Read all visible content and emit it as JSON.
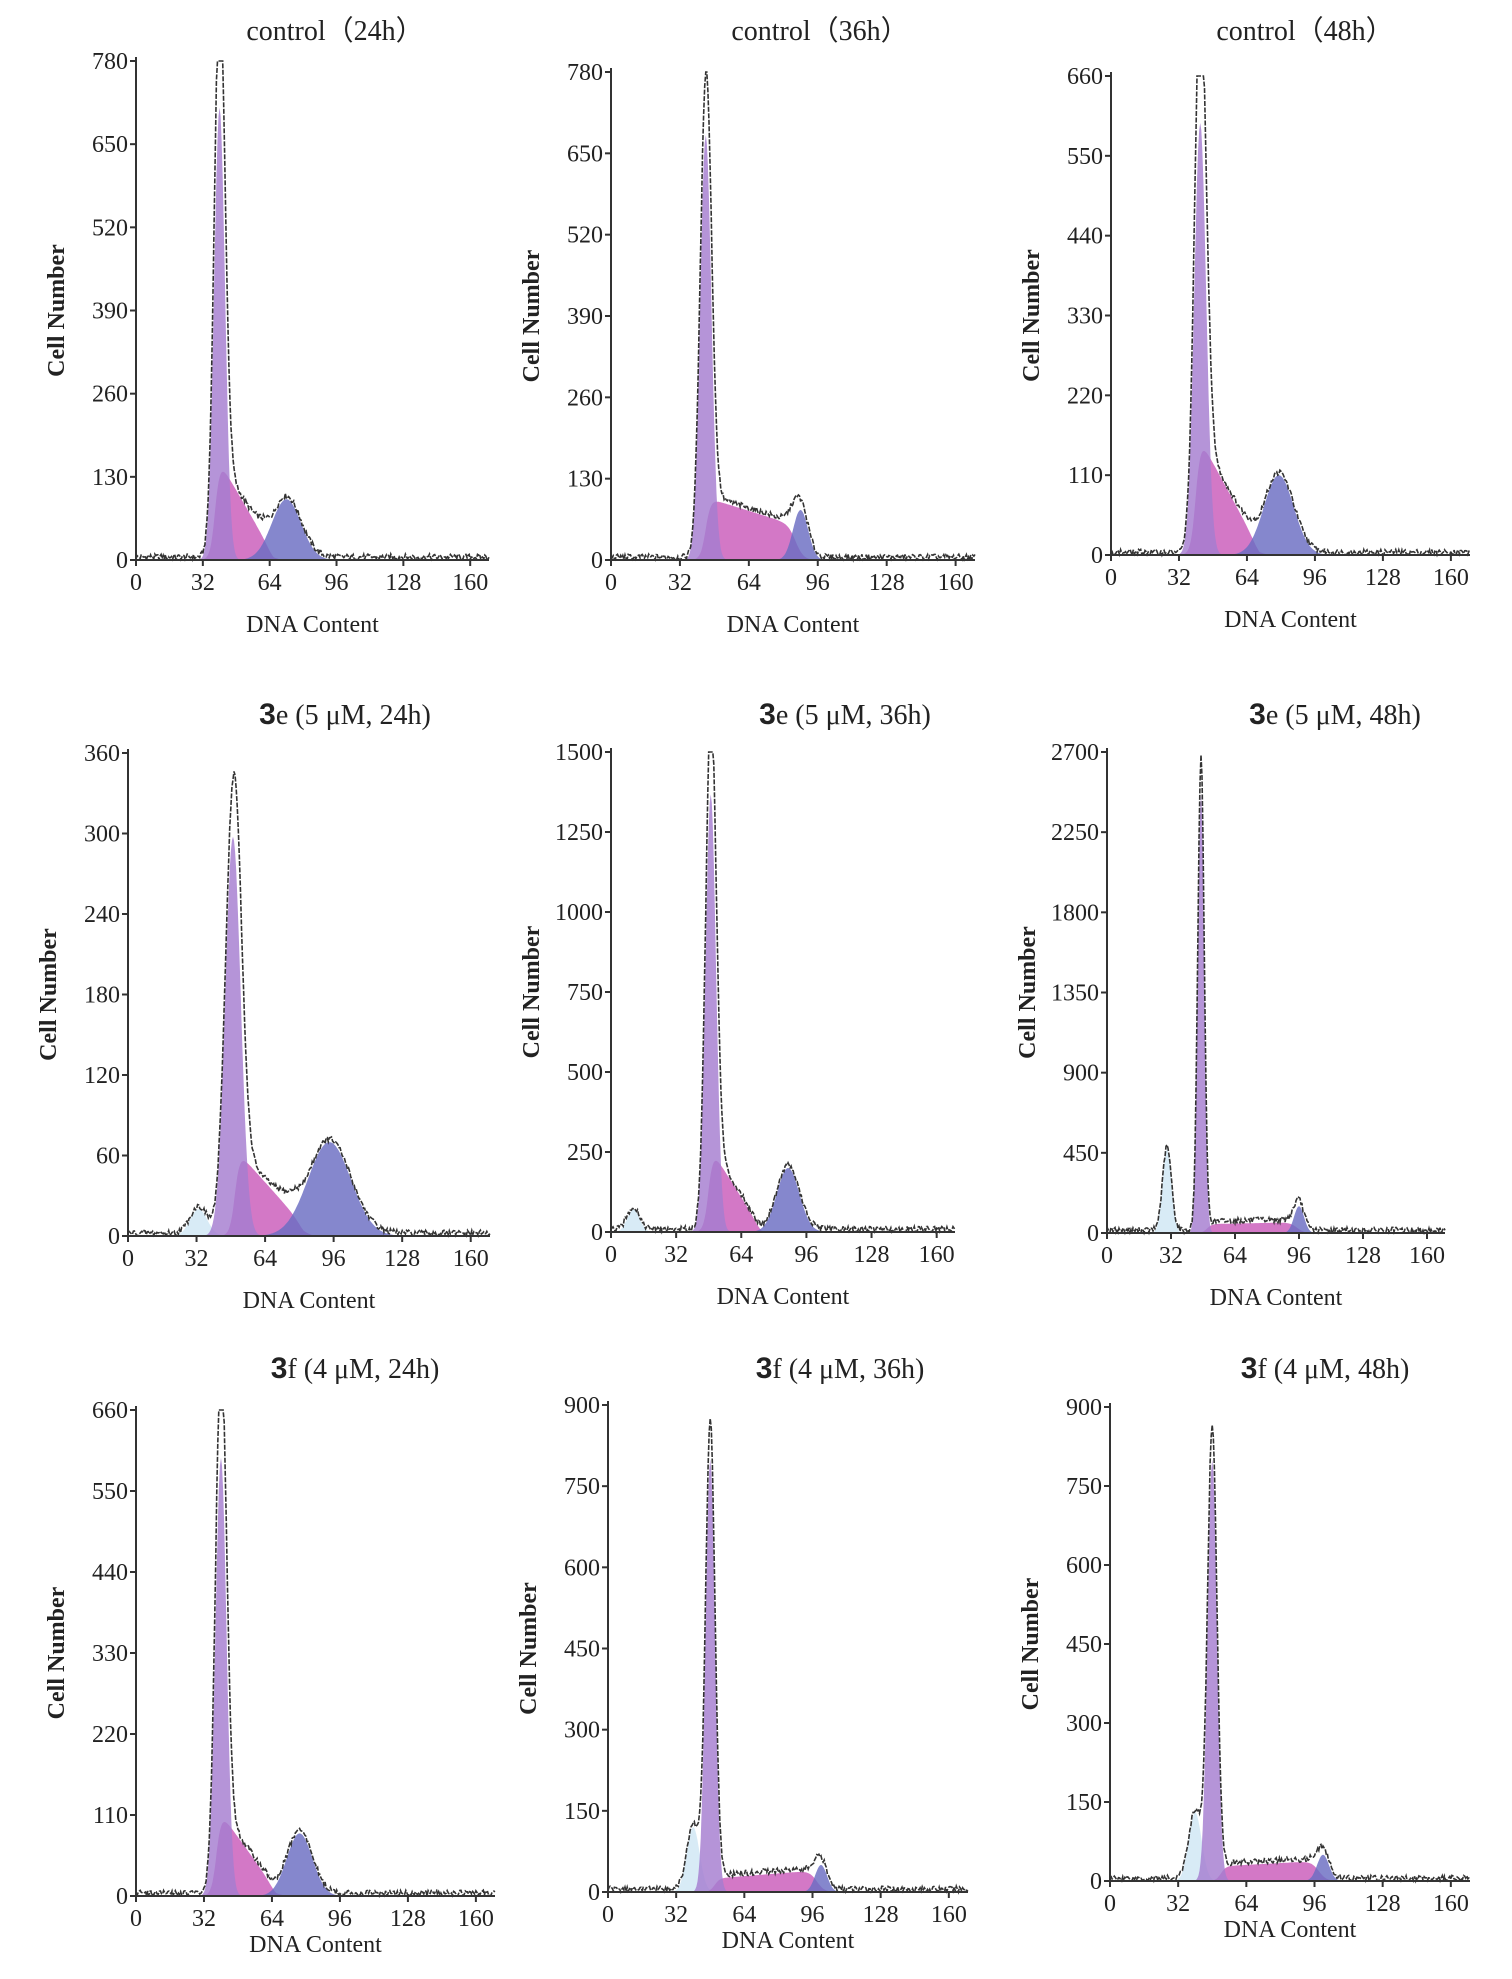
{
  "chart_data": [
    {
      "type": "area",
      "title_bold": "",
      "title": "control（24h）",
      "xlabel": "DNA Content",
      "ylabel": "Cell Number",
      "xlim": [
        0,
        169
      ],
      "ylim": [
        0,
        780
      ],
      "xticks": [
        0,
        32,
        64,
        96,
        128,
        160
      ],
      "yticks": [
        0,
        130,
        260,
        390,
        520,
        650,
        780
      ],
      "components": {
        "sub_g1": null,
        "g1": {
          "x": 40,
          "height": 760,
          "sigma": 2.6
        },
        "s": {
          "start": 38,
          "end": 66,
          "h_start": 165,
          "h_end": 8
        },
        "g2": {
          "x": 72,
          "height": 95,
          "sigma": 7
        }
      }
    },
    {
      "type": "area",
      "title_bold": "",
      "title": "control（36h）",
      "xlabel": "DNA Content",
      "ylabel": "Cell Number",
      "xlim": [
        0,
        169
      ],
      "ylim": [
        0,
        780
      ],
      "xticks": [
        0,
        32,
        64,
        96,
        128,
        160
      ],
      "yticks": [
        0,
        130,
        260,
        390,
        520,
        650,
        780
      ],
      "components": {
        "sub_g1": null,
        "g1": {
          "x": 44,
          "height": 730,
          "sigma": 2.6
        },
        "s": {
          "start": 44,
          "end": 86,
          "h_start": 100,
          "h_end": 55
        },
        "g2": {
          "x": 88,
          "height": 80,
          "sigma": 3.5
        }
      }
    },
    {
      "type": "area",
      "title_bold": "",
      "title": "control（48h）",
      "xlabel": "DNA Content",
      "ylabel": "Cell Number",
      "xlim": [
        0,
        169
      ],
      "ylim": [
        0,
        660
      ],
      "xticks": [
        0,
        32,
        64,
        96,
        128,
        160
      ],
      "yticks": [
        0,
        110,
        220,
        330,
        440,
        550,
        660
      ],
      "components": {
        "sub_g1": null,
        "g1": {
          "x": 42,
          "height": 640,
          "sigma": 2.8
        },
        "s": {
          "start": 40,
          "end": 70,
          "h_start": 170,
          "h_end": 8
        },
        "g2": {
          "x": 79,
          "height": 110,
          "sigma": 7
        }
      }
    },
    {
      "type": "area",
      "title_bold": "3",
      "title": "e (5  μM, 24h)",
      "xlabel": "DNA Content",
      "ylabel": "Cell Number",
      "xlim": [
        0,
        169
      ],
      "ylim": [
        0,
        360
      ],
      "xticks": [
        0,
        32,
        64,
        96,
        128,
        160
      ],
      "yticks": [
        0,
        60,
        120,
        180,
        240,
        300,
        360
      ],
      "components": {
        "sub_g1": {
          "x": 33,
          "height": 20,
          "sigma": 4
        },
        "g1": {
          "x": 49,
          "height": 320,
          "sigma": 3.6
        },
        "s": {
          "start": 50,
          "end": 82,
          "h_start": 65,
          "h_end": 8
        },
        "g2": {
          "x": 94,
          "height": 70,
          "sigma": 10
        }
      }
    },
    {
      "type": "area",
      "title_bold": "3",
      "title": "e (5  μM, 36h)",
      "xlabel": "DNA Content",
      "ylabel": "Cell Number",
      "xlim": [
        0,
        169
      ],
      "ylim": [
        0,
        1500
      ],
      "xticks": [
        0,
        32,
        64,
        96,
        128,
        160
      ],
      "yticks": [
        0,
        250,
        500,
        750,
        1000,
        1250,
        1500
      ],
      "components": {
        "sub_g1": {
          "x": 11,
          "height": 70,
          "sigma": 3
        },
        "g1": {
          "x": 49,
          "height": 1470,
          "sigma": 2.6
        },
        "s": {
          "start": 48,
          "end": 74,
          "h_start": 270,
          "h_end": 8
        },
        "g2": {
          "x": 87,
          "height": 200,
          "sigma": 5.5
        }
      }
    },
    {
      "type": "area",
      "title_bold": "3",
      "title": "e (5  μM, 48h)",
      "xlabel": "DNA Content",
      "ylabel": "Cell Number",
      "xlim": [
        0,
        169
      ],
      "ylim": [
        0,
        2700
      ],
      "xticks": [
        0,
        32,
        64,
        96,
        128,
        160
      ],
      "yticks": [
        0,
        450,
        900,
        1350,
        1800,
        2250,
        2700
      ],
      "components": {
        "sub_g1": {
          "x": 30,
          "height": 470,
          "sigma": 2.2
        },
        "g1": {
          "x": 47,
          "height": 2650,
          "sigma": 1.6
        },
        "s": {
          "start": 50,
          "end": 95,
          "h_start": 50,
          "h_end": 60
        },
        "g2": {
          "x": 96,
          "height": 150,
          "sigma": 2.5
        }
      }
    },
    {
      "type": "area",
      "title_bold": "3",
      "title": "f (4 μM, 24h)",
      "xlabel": "DNA Content",
      "ylabel": "Cell Number",
      "xlim": [
        0,
        169
      ],
      "ylim": [
        0,
        660
      ],
      "xticks": [
        0,
        32,
        64,
        96,
        128,
        160
      ],
      "yticks": [
        0,
        110,
        220,
        330,
        440,
        550,
        660
      ],
      "components": {
        "sub_g1": null,
        "g1": {
          "x": 40,
          "height": 640,
          "sigma": 2.6
        },
        "s": {
          "start": 38,
          "end": 66,
          "h_start": 120,
          "h_end": 8
        },
        "g2": {
          "x": 77,
          "height": 85,
          "sigma": 6
        }
      }
    },
    {
      "type": "area",
      "title_bold": "3",
      "title": "f (4 μM, 36h)",
      "xlabel": "DNA Content",
      "ylabel": "Cell Number",
      "xlim": [
        0,
        169
      ],
      "ylim": [
        0,
        900
      ],
      "xticks": [
        0,
        32,
        64,
        96,
        128,
        160
      ],
      "yticks": [
        0,
        150,
        300,
        450,
        600,
        750,
        900
      ],
      "components": {
        "sub_g1": {
          "x": 40,
          "height": 120,
          "sigma": 3
        },
        "g1": {
          "x": 48,
          "height": 860,
          "sigma": 2.2
        },
        "s": {
          "start": 50,
          "end": 98,
          "h_start": 25,
          "h_end": 40
        },
        "g2": {
          "x": 100,
          "height": 50,
          "sigma": 2.8
        }
      }
    },
    {
      "type": "area",
      "title_bold": "3",
      "title": "f (4 μM, 48h)",
      "xlabel": "DNA Content",
      "ylabel": "Cell Number",
      "xlim": [
        0,
        169
      ],
      "ylim": [
        0,
        900
      ],
      "xticks": [
        0,
        32,
        64,
        96,
        128,
        160
      ],
      "yticks": [
        0,
        150,
        300,
        450,
        600,
        750,
        900
      ],
      "components": {
        "sub_g1": {
          "x": 40,
          "height": 130,
          "sigma": 3
        },
        "g1": {
          "x": 48,
          "height": 860,
          "sigma": 2.2
        },
        "s": {
          "start": 52,
          "end": 98,
          "h_start": 28,
          "h_end": 38
        },
        "g2": {
          "x": 100,
          "height": 50,
          "sigma": 2.8
        }
      }
    }
  ],
  "colors": {
    "sub_g1": "#cfe7f4",
    "g1": "#a57dd0",
    "s": "#c95ab9",
    "g2": "#6a6cc2",
    "outline": "#333333",
    "axis": "#333333"
  }
}
